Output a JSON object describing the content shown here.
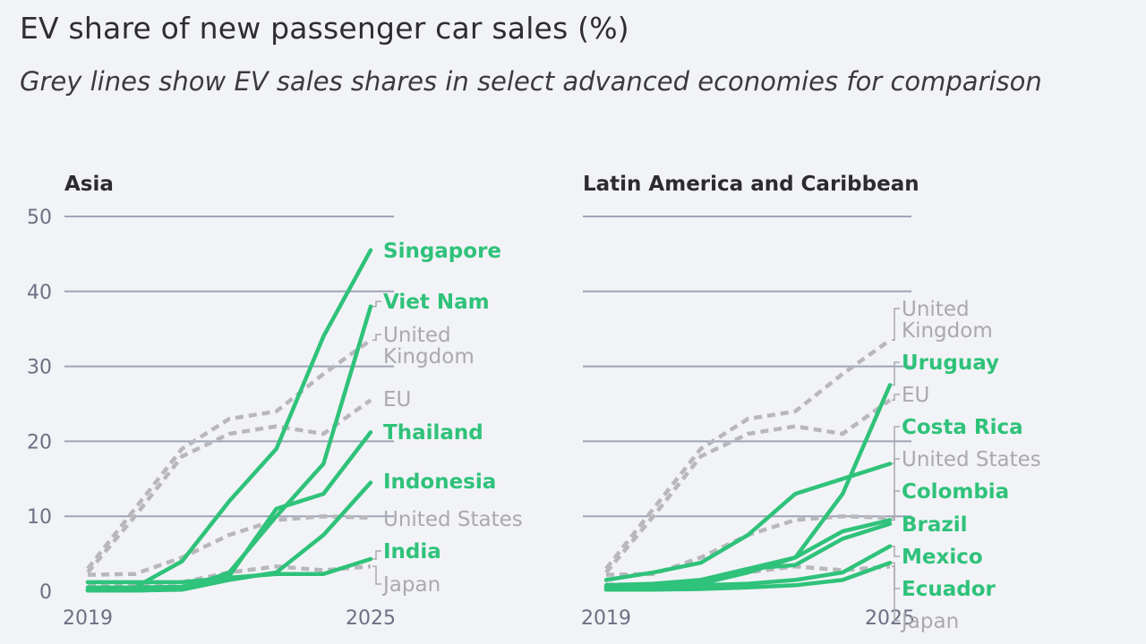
{
  "title": "EV share of new passenger car sales (%)",
  "subtitle": "Grey lines show EV sales shares in select advanced economies for comparison",
  "colors": {
    "country": "#2fc27a",
    "comparison": "#b8b8bc",
    "grid": "#9ea3b6"
  },
  "chart_data": [
    {
      "type": "line",
      "title": "Asia",
      "x": [
        2019,
        2020,
        2021,
        2022,
        2023,
        2024,
        2025
      ],
      "xticks": [
        "2019",
        "2025"
      ],
      "yticks": [
        "0",
        "10",
        "20",
        "30",
        "40",
        "50"
      ],
      "ylim": [
        0,
        50
      ],
      "series": [
        {
          "name": "Singapore",
          "kind": "country",
          "values": [
            0.2,
            0.5,
            4,
            12,
            19,
            34,
            45.5
          ]
        },
        {
          "name": "Viet Nam",
          "kind": "country",
          "values": [
            0.1,
            0.1,
            0.3,
            2.5,
            10,
            17,
            38
          ]
        },
        {
          "name": "United Kingdom",
          "label": [
            "United",
            "Kingdom"
          ],
          "kind": "comparison",
          "values": [
            3,
            11,
            19,
            23,
            24,
            29,
            33.5
          ]
        },
        {
          "name": "EU",
          "kind": "comparison",
          "values": [
            2.5,
            10,
            18,
            21,
            22,
            21,
            25.5
          ]
        },
        {
          "name": "Thailand",
          "kind": "country",
          "values": [
            0.5,
            0.5,
            0.6,
            2,
            11,
            13,
            21.2
          ]
        },
        {
          "name": "Indonesia",
          "kind": "country",
          "values": [
            0.1,
            0.1,
            0.2,
            1.5,
            2.5,
            7.5,
            14.5
          ]
        },
        {
          "name": "United States",
          "kind": "comparison",
          "values": [
            2.2,
            2.3,
            4.5,
            7.5,
            9.5,
            10,
            9.8
          ]
        },
        {
          "name": "India",
          "kind": "country",
          "values": [
            1.2,
            1.2,
            1.2,
            1.8,
            2.3,
            2.3,
            4.3
          ]
        },
        {
          "name": "Japan",
          "kind": "comparison",
          "values": [
            0.9,
            0.9,
            1.2,
            2.5,
            3.3,
            2.8,
            3.3
          ]
        }
      ]
    },
    {
      "type": "line",
      "title": "Latin America and Caribbean",
      "x": [
        2019,
        2020,
        2021,
        2022,
        2023,
        2024,
        2025
      ],
      "xticks": [
        "2019",
        "2025"
      ],
      "yticks": [
        "0",
        "10",
        "20",
        "30",
        "40",
        "50"
      ],
      "ylim": [
        0,
        50
      ],
      "series": [
        {
          "name": "United Kingdom",
          "label": [
            "United",
            "Kingdom"
          ],
          "kind": "comparison",
          "values": [
            3,
            11,
            19,
            23,
            24,
            29,
            33.5
          ]
        },
        {
          "name": "Uruguay",
          "kind": "country",
          "values": [
            0.2,
            0.3,
            1,
            2.5,
            4.5,
            13,
            27.5
          ]
        },
        {
          "name": "EU",
          "kind": "comparison",
          "values": [
            2.5,
            10,
            18,
            21,
            22,
            21,
            25.5
          ]
        },
        {
          "name": "Costa Rica",
          "kind": "country",
          "values": [
            1.5,
            2.5,
            3.8,
            7.5,
            13,
            15,
            17
          ]
        },
        {
          "name": "United States",
          "kind": "comparison",
          "values": [
            2.2,
            2.3,
            4.5,
            7.5,
            9.5,
            10,
            9.8
          ]
        },
        {
          "name": "Colombia",
          "kind": "country",
          "values": [
            0.8,
            1,
            1.5,
            3,
            4.5,
            8,
            9.5
          ]
        },
        {
          "name": "Brazil",
          "kind": "country",
          "values": [
            0.5,
            0.8,
            1.5,
            3,
            3.5,
            7,
            9
          ]
        },
        {
          "name": "Mexico",
          "kind": "country",
          "values": [
            0.5,
            0.5,
            0.8,
            1,
            1.5,
            2.5,
            6
          ]
        },
        {
          "name": "Ecuador",
          "kind": "country",
          "values": [
            0.2,
            0.2,
            0.3,
            0.5,
            0.8,
            1.5,
            3.8
          ]
        },
        {
          "name": "Japan",
          "kind": "comparison",
          "values": [
            0.9,
            0.9,
            1.2,
            2.5,
            3.3,
            2.8,
            3.3
          ]
        }
      ]
    }
  ]
}
